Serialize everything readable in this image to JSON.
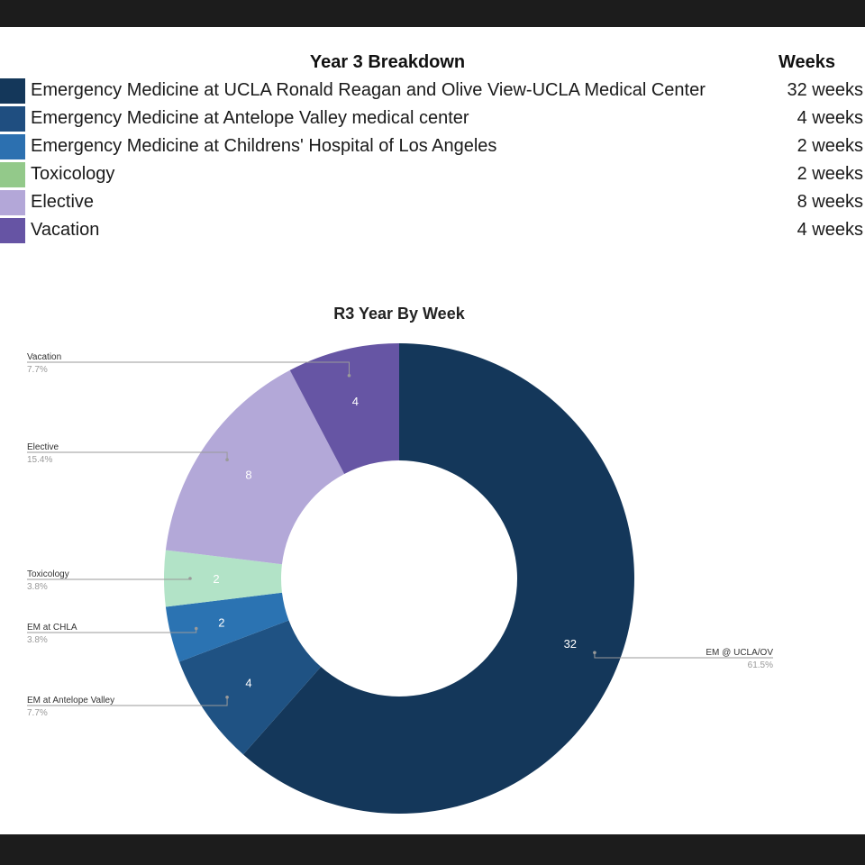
{
  "table": {
    "title": "Year 3 Breakdown",
    "weeks_header": "Weeks",
    "rows": [
      {
        "label": "Emergency Medicine at UCLA Ronald Reagan and Olive View-UCLA Medical Center",
        "weeks": "32 weeks",
        "color": "#14375a"
      },
      {
        "label": "Emergency Medicine at Antelope Valley medical center",
        "weeks": "4 weeks",
        "color": "#1f4e80"
      },
      {
        "label": "Emergency Medicine at Childrens' Hospital of Los Angeles",
        "weeks": "2 weeks",
        "color": "#2c70b0"
      },
      {
        "label": "Toxicology",
        "weeks": "2 weeks",
        "color": "#93c98a"
      },
      {
        "label": "Elective",
        "weeks": "8 weeks",
        "color": "#b3a7d8"
      },
      {
        "label": "Vacation",
        "weeks": "4 weeks",
        "color": "#6654a4"
      }
    ]
  },
  "chart_data": {
    "type": "pie",
    "style": "donut",
    "title": "R3 Year By Week",
    "total": 52,
    "slices": [
      {
        "name": "EM @ UCLA/OV",
        "value": 32,
        "value_label": "32",
        "percent": "61.5%",
        "color": "#14375a"
      },
      {
        "name": "EM at Antelope Valley",
        "value": 4,
        "value_label": "4",
        "percent": "7.7%",
        "color": "#1f5283"
      },
      {
        "name": "EM at CHLA",
        "value": 2,
        "value_label": "2",
        "percent": "3.8%",
        "color": "#2b73b2"
      },
      {
        "name": "Toxicology",
        "value": 2,
        "value_label": "2",
        "percent": "3.8%",
        "color": "#b2e3c7"
      },
      {
        "name": "Elective",
        "value": 8,
        "value_label": "8",
        "percent": "15.4%",
        "color": "#b3a8d8"
      },
      {
        "name": "Vacation",
        "value": 4,
        "value_label": "4",
        "percent": "7.7%",
        "color": "#6655a4"
      }
    ]
  }
}
